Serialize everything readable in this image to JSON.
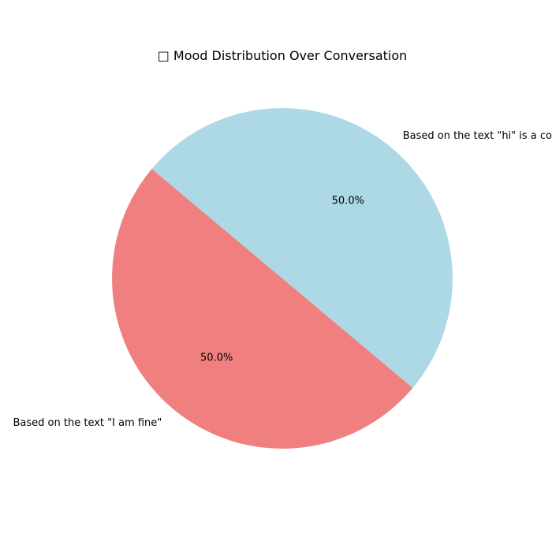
{
  "chart_data": {
    "type": "pie",
    "title": "□ Mood Distribution Over Conversation",
    "slices": [
      {
        "label": "Based on the text \"I am fine\"",
        "value": 50.0,
        "percent_label": "50.0%",
        "color": "#F08080"
      },
      {
        "label": "Based on the text \"hi\" is a common greeting",
        "value": 50.0,
        "percent_label": "50.0%",
        "color": "#ADD8E6"
      }
    ],
    "start_angle_deg": 140,
    "legend": "none"
  }
}
